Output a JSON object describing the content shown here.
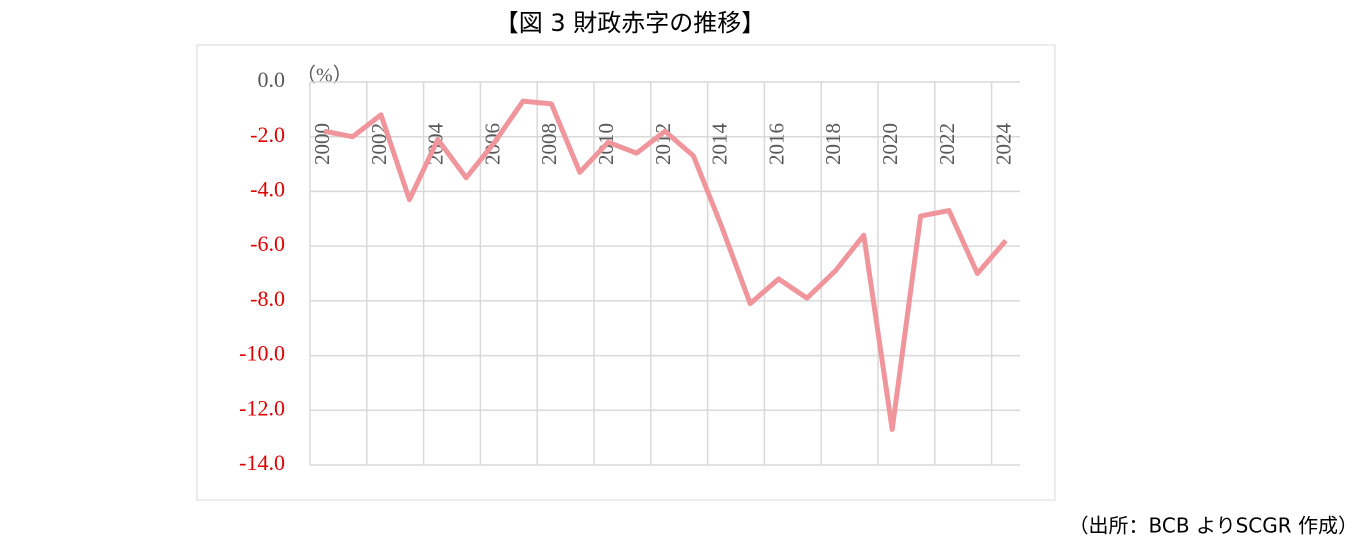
{
  "chart_data": {
    "type": "line",
    "title": "【図 3  財政赤字の推移】",
    "unit_label": "（%）",
    "source": "（出所：BCB よりSCGR 作成）",
    "categories": [
      "2000",
      null,
      "2002",
      null,
      "2004",
      null,
      "2006",
      null,
      "2008",
      null,
      "2010",
      null,
      "2012",
      null,
      "2014",
      null,
      "2016",
      null,
      "2018",
      null,
      "2020",
      null,
      "2022",
      null,
      "2024"
    ],
    "series": [
      {
        "name": "財政赤字",
        "color": "#f0959c",
        "values": [
          -1.8,
          -2.0,
          -1.2,
          -4.3,
          -2.1,
          -3.5,
          -2.2,
          -0.7,
          -0.8,
          -3.3,
          -2.2,
          -2.6,
          -1.8,
          -2.7,
          -5.3,
          -8.1,
          -7.2,
          -7.9,
          -6.9,
          -5.6,
          -12.7,
          -4.9,
          -4.7,
          -7.0,
          -5.8
        ]
      }
    ],
    "ylim": [
      -14,
      0
    ],
    "yticks": [
      {
        "value": 0,
        "label": "0.0"
      },
      {
        "value": -2,
        "label": "-2.0"
      },
      {
        "value": -4,
        "label": "-4.0"
      },
      {
        "value": -6,
        "label": "-6.0"
      },
      {
        "value": -8,
        "label": "-8.0"
      },
      {
        "value": -10,
        "label": "-10.0"
      },
      {
        "value": -12,
        "label": "-12.0"
      },
      {
        "value": -14,
        "label": "-14.0"
      }
    ],
    "tick_label_color": "#595959",
    "negative_tick_label_color": "#e00000",
    "grid": true
  }
}
